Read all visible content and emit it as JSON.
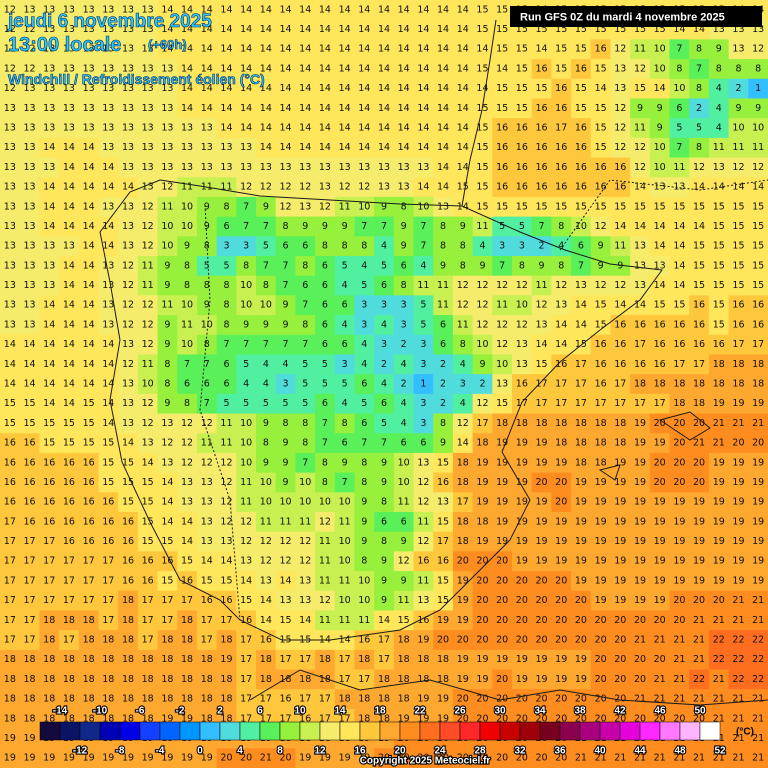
{
  "header": {
    "date": "jeudi 6 novembre 2025",
    "time": "13:00 locale",
    "lead": "(+60h)",
    "parameter": "Windchill / Refroidissement éolien (°C)",
    "run": "Run GFS 0Z du mardi 4 novembre 2025"
  },
  "grid": {
    "rows": [
      [
        12,
        13,
        13,
        13,
        13,
        13,
        13,
        13,
        14,
        14,
        14,
        14,
        14,
        14,
        14,
        14,
        14,
        14,
        14,
        14,
        14,
        14,
        14,
        14,
        15,
        15,
        15,
        14,
        15,
        15,
        15,
        15,
        15,
        15,
        15,
        15,
        15,
        14,
        14
      ],
      [
        12,
        12,
        13,
        13,
        13,
        13,
        13,
        13,
        14,
        14,
        14,
        14,
        14,
        14,
        14,
        14,
        14,
        14,
        14,
        14,
        14,
        14,
        14,
        14,
        15,
        15,
        15,
        15,
        15,
        15,
        15,
        15,
        15,
        15,
        14,
        14,
        13,
        13,
        13
      ],
      [
        12,
        12,
        13,
        13,
        13,
        13,
        13,
        13,
        14,
        14,
        14,
        14,
        14,
        14,
        14,
        14,
        14,
        14,
        14,
        14,
        14,
        14,
        14,
        14,
        14,
        15,
        15,
        14,
        15,
        15,
        16,
        12,
        11,
        10,
        7,
        8,
        9,
        13,
        12
      ],
      [
        12,
        12,
        13,
        13,
        13,
        13,
        13,
        13,
        13,
        14,
        14,
        14,
        14,
        14,
        14,
        14,
        14,
        14,
        14,
        14,
        14,
        14,
        14,
        14,
        15,
        14,
        15,
        16,
        15,
        16,
        15,
        13,
        12,
        10,
        8,
        7,
        8,
        8,
        8
      ],
      [
        12,
        13,
        13,
        13,
        13,
        13,
        13,
        13,
        13,
        14,
        14,
        14,
        14,
        14,
        14,
        14,
        14,
        14,
        14,
        14,
        14,
        14,
        14,
        14,
        14,
        15,
        15,
        15,
        16,
        15,
        14,
        13,
        15,
        14,
        10,
        8,
        4,
        2,
        1
      ],
      [
        13,
        13,
        13,
        13,
        13,
        13,
        13,
        13,
        13,
        14,
        14,
        14,
        14,
        14,
        14,
        14,
        14,
        14,
        14,
        14,
        14,
        14,
        14,
        14,
        15,
        15,
        15,
        16,
        16,
        15,
        15,
        12,
        9,
        9,
        6,
        2,
        4,
        9,
        9
      ],
      [
        13,
        13,
        13,
        13,
        13,
        13,
        13,
        13,
        13,
        13,
        13,
        14,
        14,
        14,
        14,
        14,
        14,
        14,
        14,
        14,
        14,
        14,
        14,
        14,
        15,
        16,
        16,
        16,
        17,
        16,
        15,
        12,
        11,
        9,
        5,
        5,
        4,
        10,
        10
      ],
      [
        13,
        13,
        14,
        14,
        14,
        13,
        13,
        13,
        13,
        13,
        13,
        13,
        13,
        14,
        14,
        14,
        14,
        14,
        14,
        14,
        14,
        14,
        14,
        14,
        15,
        16,
        16,
        16,
        16,
        16,
        15,
        12,
        12,
        10,
        7,
        8,
        11,
        11,
        11
      ],
      [
        13,
        13,
        13,
        14,
        14,
        14,
        13,
        13,
        13,
        13,
        13,
        13,
        13,
        13,
        13,
        13,
        13,
        13,
        13,
        13,
        13,
        13,
        14,
        14,
        15,
        16,
        16,
        16,
        16,
        16,
        16,
        16,
        12,
        10,
        11,
        12,
        13,
        12,
        12
      ],
      [
        13,
        13,
        14,
        14,
        14,
        14,
        14,
        13,
        12,
        11,
        11,
        11,
        12,
        12,
        12,
        12,
        13,
        12,
        12,
        13,
        13,
        14,
        14,
        15,
        15,
        16,
        16,
        16,
        16,
        16,
        16,
        16,
        14,
        13,
        13,
        14,
        14,
        14,
        14
      ],
      [
        13,
        13,
        14,
        14,
        14,
        13,
        13,
        12,
        11,
        10,
        9,
        8,
        7,
        9,
        12,
        13,
        12,
        11,
        10,
        9,
        8,
        10,
        13,
        14,
        15,
        15,
        15,
        15,
        15,
        15,
        15,
        15,
        15,
        15,
        15,
        15,
        15,
        15,
        15
      ],
      [
        13,
        13,
        14,
        14,
        14,
        14,
        13,
        12,
        10,
        10,
        9,
        6,
        7,
        7,
        8,
        9,
        9,
        9,
        7,
        7,
        9,
        7,
        8,
        9,
        11,
        5,
        5,
        7,
        8,
        10,
        12,
        14,
        14,
        14,
        14,
        14,
        15,
        15,
        15
      ],
      [
        13,
        13,
        13,
        13,
        14,
        14,
        13,
        12,
        10,
        9,
        8,
        3,
        3,
        5,
        6,
        6,
        8,
        8,
        8,
        4,
        9,
        7,
        8,
        8,
        4,
        3,
        3,
        2,
        4,
        6,
        9,
        11,
        13,
        14,
        14,
        15,
        15,
        15,
        15
      ],
      [
        13,
        13,
        13,
        14,
        14,
        13,
        12,
        11,
        9,
        8,
        5,
        5,
        8,
        7,
        7,
        8,
        6,
        5,
        4,
        5,
        6,
        4,
        9,
        8,
        9,
        7,
        8,
        9,
        8,
        7,
        9,
        9,
        13,
        13,
        14,
        15,
        15,
        15,
        15
      ],
      [
        13,
        13,
        13,
        14,
        14,
        13,
        12,
        11,
        9,
        8,
        8,
        8,
        10,
        8,
        7,
        6,
        6,
        4,
        5,
        6,
        8,
        11,
        11,
        12,
        12,
        12,
        12,
        11,
        12,
        13,
        12,
        12,
        13,
        14,
        14,
        15,
        15,
        15,
        15
      ],
      [
        13,
        13,
        14,
        14,
        14,
        13,
        12,
        12,
        11,
        10,
        9,
        8,
        10,
        10,
        9,
        7,
        6,
        6,
        3,
        3,
        3,
        5,
        11,
        12,
        12,
        11,
        10,
        12,
        13,
        14,
        15,
        14,
        14,
        15,
        15,
        16,
        15,
        16,
        16
      ],
      [
        13,
        13,
        14,
        14,
        14,
        13,
        12,
        12,
        9,
        11,
        10,
        8,
        9,
        9,
        9,
        8,
        6,
        4,
        3,
        4,
        3,
        5,
        6,
        11,
        12,
        12,
        12,
        13,
        14,
        14,
        15,
        16,
        16,
        16,
        16,
        16,
        15,
        16,
        16
      ],
      [
        14,
        14,
        14,
        14,
        14,
        14,
        13,
        12,
        9,
        10,
        8,
        7,
        7,
        7,
        7,
        7,
        6,
        6,
        4,
        3,
        2,
        3,
        6,
        8,
        10,
        12,
        13,
        14,
        14,
        15,
        16,
        16,
        17,
        16,
        16,
        16,
        16,
        17,
        17
      ],
      [
        14,
        14,
        14,
        14,
        14,
        14,
        12,
        11,
        8,
        7,
        7,
        6,
        5,
        4,
        4,
        5,
        5,
        3,
        4,
        2,
        4,
        3,
        2,
        4,
        9,
        10,
        13,
        15,
        16,
        17,
        16,
        16,
        16,
        16,
        17,
        17,
        18,
        18,
        18
      ],
      [
        14,
        14,
        14,
        14,
        14,
        14,
        13,
        10,
        8,
        6,
        6,
        6,
        4,
        4,
        3,
        5,
        5,
        5,
        6,
        4,
        2,
        1,
        2,
        3,
        2,
        13,
        16,
        17,
        17,
        17,
        16,
        17,
        18,
        18,
        18,
        18,
        18,
        18,
        18
      ],
      [
        15,
        15,
        14,
        14,
        15,
        14,
        13,
        12,
        9,
        8,
        7,
        5,
        5,
        5,
        5,
        5,
        6,
        4,
        5,
        6,
        4,
        3,
        2,
        4,
        12,
        15,
        17,
        17,
        17,
        17,
        17,
        17,
        17,
        17,
        18,
        18,
        19,
        19,
        19
      ],
      [
        15,
        15,
        15,
        15,
        15,
        14,
        13,
        12,
        13,
        12,
        12,
        11,
        10,
        9,
        8,
        8,
        7,
        8,
        6,
        5,
        4,
        3,
        8,
        12,
        17,
        18,
        18,
        18,
        18,
        18,
        18,
        18,
        19,
        20,
        20,
        20,
        21,
        21,
        21
      ],
      [
        16,
        16,
        15,
        15,
        15,
        15,
        14,
        13,
        12,
        12,
        11,
        11,
        10,
        8,
        9,
        8,
        7,
        6,
        7,
        7,
        6,
        6,
        9,
        14,
        18,
        19,
        19,
        19,
        18,
        18,
        18,
        18,
        19,
        19,
        20,
        21,
        21,
        20,
        20
      ],
      [
        16,
        16,
        16,
        16,
        16,
        15,
        15,
        14,
        13,
        12,
        12,
        12,
        10,
        9,
        9,
        7,
        8,
        9,
        8,
        9,
        10,
        13,
        15,
        18,
        19,
        19,
        19,
        19,
        19,
        18,
        18,
        19,
        19,
        20,
        20,
        20,
        19,
        19,
        19
      ],
      [
        16,
        16,
        16,
        16,
        16,
        15,
        15,
        15,
        14,
        13,
        13,
        12,
        11,
        10,
        9,
        10,
        8,
        7,
        8,
        9,
        10,
        12,
        16,
        18,
        19,
        19,
        19,
        20,
        20,
        19,
        19,
        19,
        19,
        20,
        20,
        20,
        19,
        19,
        19
      ],
      [
        16,
        16,
        16,
        16,
        16,
        16,
        15,
        15,
        14,
        13,
        13,
        12,
        11,
        10,
        10,
        10,
        10,
        10,
        9,
        8,
        11,
        12,
        13,
        17,
        19,
        19,
        19,
        19,
        20,
        19,
        19,
        19,
        19,
        19,
        19,
        19,
        19,
        19,
        19
      ],
      [
        17,
        16,
        16,
        16,
        16,
        16,
        16,
        15,
        14,
        14,
        13,
        12,
        12,
        11,
        11,
        11,
        12,
        11,
        9,
        6,
        6,
        11,
        15,
        18,
        18,
        19,
        19,
        19,
        19,
        19,
        19,
        19,
        19,
        19,
        19,
        19,
        19,
        19,
        19
      ],
      [
        17,
        17,
        17,
        16,
        16,
        16,
        16,
        15,
        15,
        14,
        13,
        13,
        12,
        12,
        12,
        12,
        11,
        10,
        9,
        8,
        9,
        12,
        17,
        18,
        19,
        19,
        19,
        19,
        19,
        19,
        19,
        19,
        19,
        19,
        19,
        19,
        19,
        19,
        19
      ],
      [
        17,
        17,
        17,
        17,
        17,
        17,
        16,
        16,
        16,
        15,
        14,
        14,
        13,
        12,
        12,
        12,
        11,
        10,
        8,
        9,
        12,
        16,
        16,
        20,
        20,
        20,
        19,
        19,
        19,
        19,
        19,
        19,
        19,
        19,
        19,
        19,
        19,
        19,
        19
      ],
      [
        17,
        17,
        17,
        17,
        17,
        17,
        16,
        16,
        15,
        16,
        15,
        15,
        14,
        13,
        14,
        13,
        11,
        11,
        10,
        9,
        9,
        11,
        15,
        19,
        20,
        20,
        20,
        20,
        20,
        19,
        19,
        19,
        19,
        19,
        19,
        19,
        19,
        19,
        19
      ],
      [
        17,
        17,
        17,
        17,
        17,
        17,
        18,
        17,
        17,
        17,
        16,
        16,
        15,
        14,
        13,
        13,
        12,
        10,
        10,
        9,
        11,
        13,
        15,
        19,
        20,
        20,
        20,
        20,
        20,
        20,
        19,
        19,
        19,
        19,
        20,
        20,
        20,
        21,
        21
      ],
      [
        17,
        17,
        18,
        18,
        18,
        17,
        18,
        17,
        17,
        18,
        17,
        17,
        16,
        14,
        15,
        14,
        11,
        11,
        11,
        14,
        15,
        16,
        19,
        19,
        20,
        20,
        20,
        20,
        20,
        20,
        20,
        20,
        20,
        20,
        20,
        21,
        21,
        21,
        21
      ],
      [
        17,
        17,
        18,
        17,
        18,
        18,
        18,
        17,
        18,
        18,
        17,
        18,
        17,
        16,
        15,
        15,
        14,
        14,
        16,
        17,
        18,
        19,
        20,
        20,
        20,
        20,
        20,
        20,
        20,
        20,
        20,
        20,
        21,
        21,
        21,
        21,
        22,
        22,
        22
      ],
      [
        18,
        18,
        18,
        18,
        18,
        18,
        18,
        18,
        18,
        18,
        18,
        19,
        17,
        18,
        17,
        17,
        18,
        17,
        18,
        17,
        18,
        18,
        18,
        19,
        19,
        19,
        19,
        19,
        19,
        19,
        20,
        20,
        20,
        20,
        21,
        21,
        22,
        22,
        22
      ],
      [
        18,
        18,
        18,
        18,
        18,
        18,
        18,
        18,
        18,
        18,
        18,
        18,
        17,
        18,
        18,
        18,
        18,
        17,
        17,
        18,
        18,
        18,
        18,
        19,
        19,
        20,
        19,
        19,
        19,
        19,
        20,
        20,
        20,
        21,
        21,
        22,
        21,
        22,
        22
      ],
      [
        18,
        18,
        18,
        18,
        18,
        18,
        18,
        18,
        18,
        18,
        18,
        18,
        17,
        17,
        16,
        17,
        17,
        18,
        18,
        18,
        18,
        19,
        19,
        20,
        20,
        20,
        20,
        20,
        20,
        20,
        20,
        20,
        21,
        21,
        21,
        21,
        21,
        21,
        21
      ],
      [
        18,
        18,
        18,
        18,
        18,
        18,
        18,
        18,
        19,
        19,
        18,
        18,
        17,
        17,
        17,
        16,
        17,
        17,
        18,
        18,
        19,
        19,
        19,
        20,
        20,
        20,
        20,
        20,
        20,
        20,
        20,
        20,
        20,
        20,
        20,
        20,
        21,
        21,
        21
      ],
      [
        19,
        19,
        19,
        19,
        19,
        19,
        19,
        19,
        19,
        19,
        19,
        19,
        19,
        19,
        18,
        18,
        18,
        18,
        19,
        19,
        20,
        20,
        20,
        20,
        20,
        20,
        20,
        20,
        20,
        21,
        21,
        21,
        21,
        21,
        21,
        21,
        21,
        21,
        21
      ],
      [
        19,
        19,
        19,
        19,
        19,
        19,
        19,
        19,
        19,
        19,
        19,
        20,
        20,
        21,
        20,
        19,
        19,
        19,
        19,
        20,
        20,
        20,
        20,
        20,
        20,
        20,
        20,
        20,
        20,
        21,
        21,
        21,
        21,
        21,
        21,
        21,
        21,
        21,
        21
      ]
    ]
  },
  "legend": {
    "values": [
      -14,
      -12,
      -10,
      -8,
      -6,
      -4,
      -2,
      0,
      2,
      4,
      6,
      8,
      10,
      12,
      14,
      16,
      18,
      20,
      22,
      24,
      26,
      28,
      30,
      32,
      34,
      36,
      38,
      40,
      42,
      44,
      46,
      48,
      50,
      52
    ],
    "colors": [
      "#140a3c",
      "#0a1464",
      "#10288c",
      "#0000b4",
      "#0000e6",
      "#1440ff",
      "#0064ff",
      "#0096ff",
      "#32beff",
      "#50dcdc",
      "#50f0a0",
      "#5af05a",
      "#96f03c",
      "#c8f050",
      "#f4ec6a",
      "#ffe65a",
      "#ffc83c",
      "#ffa830",
      "#ff8c1e",
      "#ff6e1e",
      "#ff4b28",
      "#ff2828",
      "#f00000",
      "#c80000",
      "#a0000a",
      "#78001e",
      "#8c0050",
      "#aa0080",
      "#c800aa",
      "#e600dc",
      "#ff28ff",
      "#ff78ff",
      "#ffb4ff",
      "#ffffff"
    ],
    "unit": "(°C)"
  },
  "copyright": "Copyright 2025 Meteociel.fr"
}
